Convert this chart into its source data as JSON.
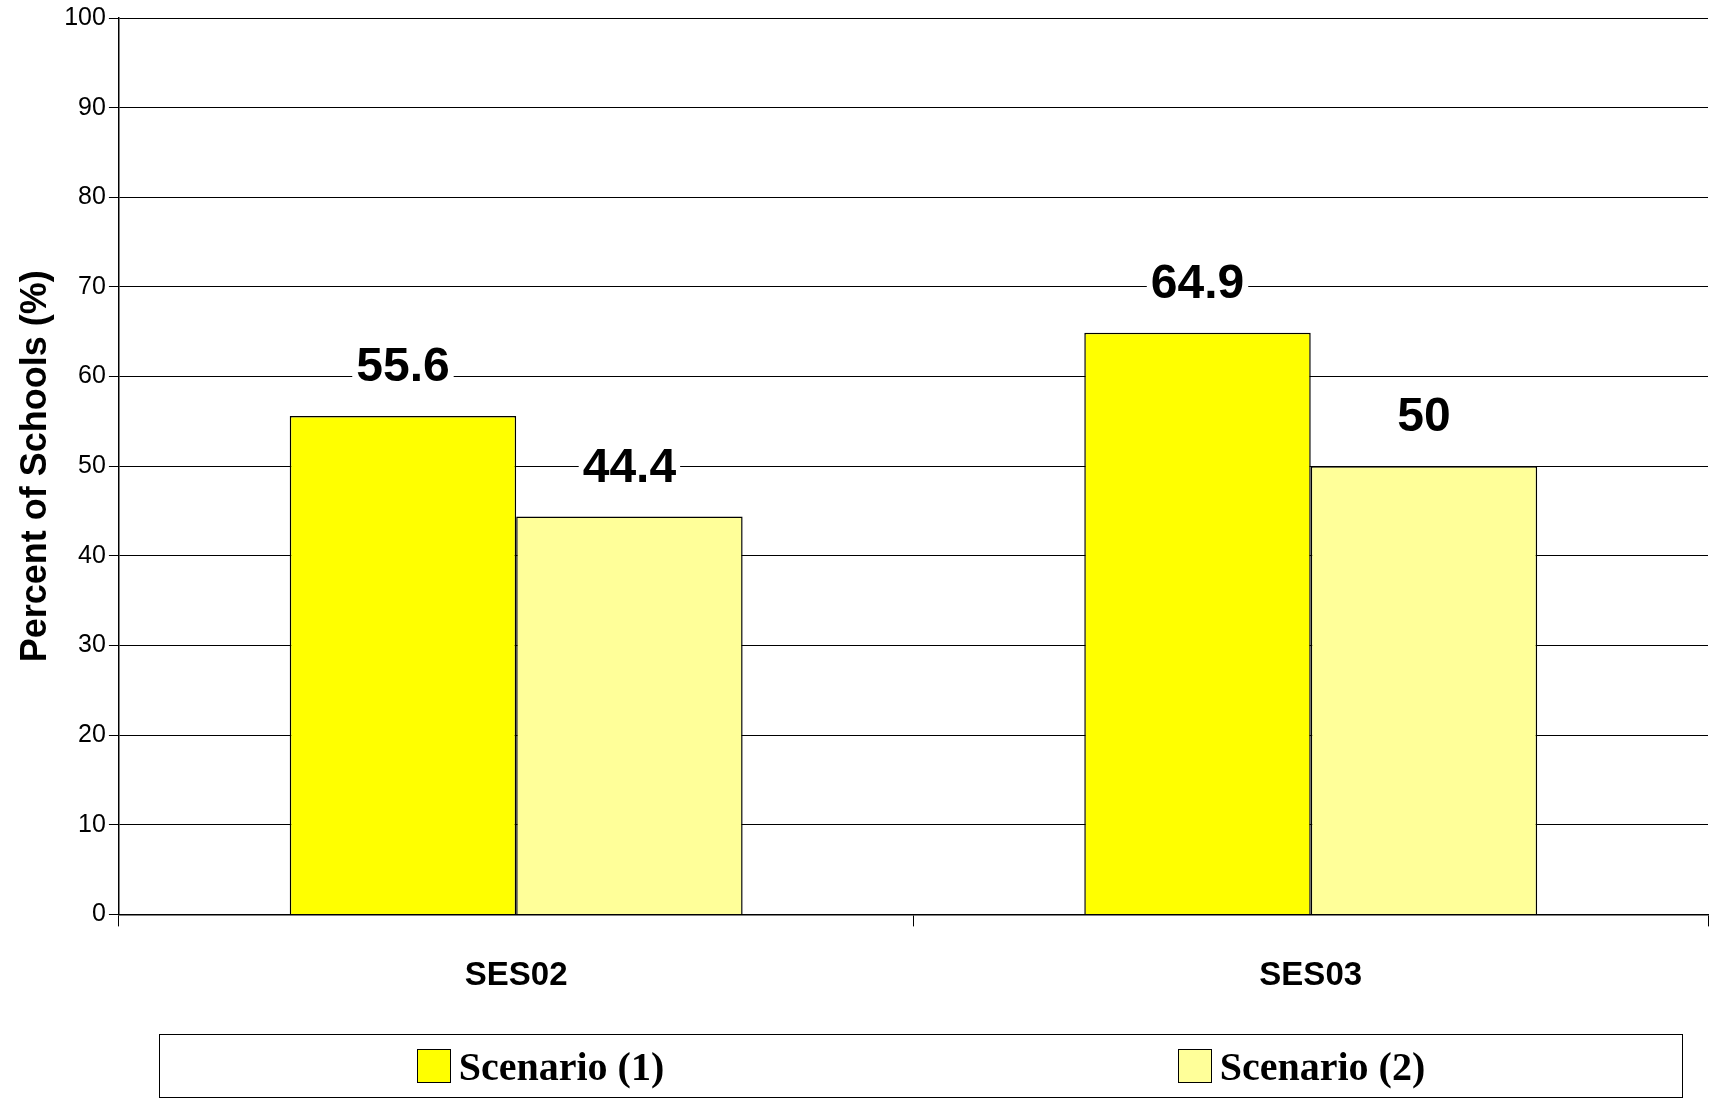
{
  "chart_data": {
    "type": "bar",
    "ylabel": "Percent of Schools (%)",
    "categories": [
      "SES02",
      "SES03"
    ],
    "series": [
      {
        "name": "Scenario (1)",
        "color": "#ffff00",
        "values": [
          55.6,
          64.9
        ]
      },
      {
        "name": "Scenario (2)",
        "color": "#ffff99",
        "values": [
          44.4,
          50
        ]
      }
    ],
    "ylim": [
      0,
      100
    ],
    "yticks": [
      0,
      10,
      20,
      30,
      40,
      50,
      60,
      70,
      80,
      90,
      100
    ],
    "grid": "y",
    "data_labels": true,
    "legend": "bottom"
  }
}
